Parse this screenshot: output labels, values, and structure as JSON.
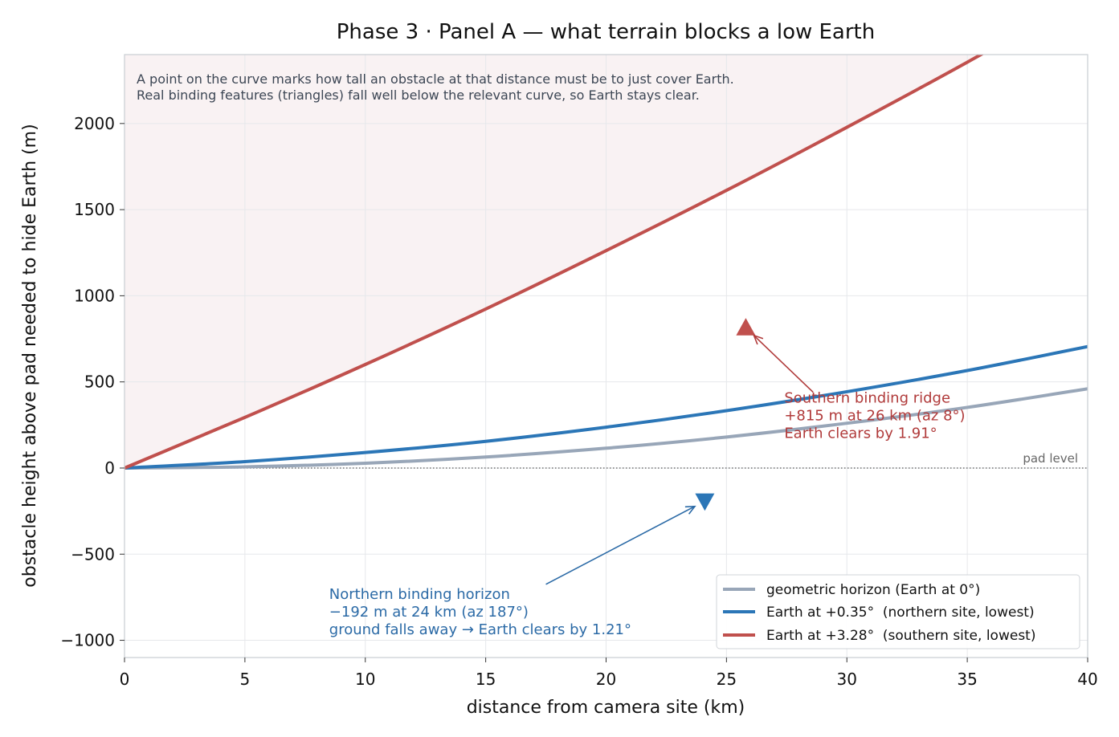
{
  "chart_data": {
    "type": "line",
    "title": "Phase 3 · Panel A — what terrain blocks a low Earth",
    "xlabel": "distance from camera site  (km)",
    "ylabel": "obstacle height above pad needed to hide Earth  (m)",
    "xlim": [
      0,
      40
    ],
    "ylim": [
      -1100,
      2400
    ],
    "xticks": [
      0,
      5,
      10,
      15,
      20,
      25,
      30,
      35,
      40
    ],
    "yticks": [
      -1000,
      -500,
      0,
      500,
      1000,
      1500,
      2000
    ],
    "xtick_labels": [
      "0",
      "5",
      "10",
      "15",
      "20",
      "25",
      "30",
      "35",
      "40"
    ],
    "ytick_labels": [
      "−1000",
      "−500",
      "0",
      "500",
      "1000",
      "1500",
      "2000"
    ],
    "grid": true,
    "legend_position": "bottom-right",
    "series": [
      {
        "name": "geometric horizon (Earth at 0°)",
        "color": "#98a6b8",
        "x": [
          0,
          5,
          10,
          15,
          20,
          25,
          30,
          35,
          40
        ],
        "y": [
          0,
          7,
          28,
          64,
          115,
          180,
          260,
          352,
          460
        ]
      },
      {
        "name": "Earth at +0.35°  (northern site, lowest)",
        "color": "#2b76b7",
        "x": [
          0,
          5,
          10,
          15,
          20,
          25,
          30,
          35,
          40
        ],
        "y": [
          0,
          37,
          90,
          155,
          237,
          333,
          443,
          566,
          705
        ]
      },
      {
        "name": "Earth at +3.28°  (southern site, lowest)",
        "color": "#c0504d",
        "x": [
          0,
          5,
          10,
          15,
          20,
          25,
          30,
          35,
          40
        ],
        "y": [
          0,
          294,
          601,
          923,
          1262,
          1612,
          1978,
          2356,
          2750
        ]
      }
    ],
    "shaded_region": {
      "above_series": 2,
      "color": "#f9f2f3"
    },
    "pad_level": {
      "y": 0,
      "label": "pad level"
    },
    "features": [
      {
        "name": "Southern binding ridge",
        "x": 25.8,
        "y": 815,
        "marker": "triangle-up",
        "color": "#c0504d",
        "label_lines": [
          "Southern binding ridge",
          "+815 m at 26 km (az 8°)",
          "Earth clears by 1.91°"
        ],
        "label_color": "#b03a3a",
        "label_at": [
          27.4,
          380
        ],
        "arrow_from": [
          28.6,
          440
        ]
      },
      {
        "name": "Northern binding horizon",
        "x": 24.1,
        "y": -192,
        "marker": "triangle-down",
        "color": "#2b76b7",
        "label_lines": [
          "Northern binding horizon",
          "−192 m at 24 km (az 187°)",
          "ground falls away → Earth clears by 1.21°"
        ],
        "label_color": "#2b6aa6",
        "label_at": [
          8.5,
          -760
        ],
        "arrow_from": [
          17.5,
          -675
        ]
      }
    ],
    "notes": [
      "A point on the curve marks how tall an obstacle at that distance must be to just cover Earth.",
      "Real binding features (triangles) fall well below the relevant curve, so Earth stays clear."
    ]
  }
}
